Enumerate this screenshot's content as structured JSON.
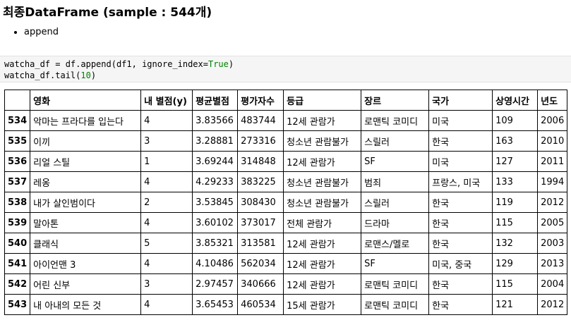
{
  "heading": "최종DataFrame (sample : 544개)",
  "bullets": [
    "append"
  ],
  "code": {
    "line1_a": "watcha_df = df.append(df1, ignore_index=",
    "line1_kw": "True",
    "line1_b": ")",
    "line2_a": "watcha_df.tail(",
    "line2_num": "10",
    "line2_b": ")"
  },
  "table": {
    "columns": [
      "",
      "영화",
      "내 별점(y)",
      "평균별점",
      "평가자수",
      "등급",
      "장르",
      "국가",
      "상영시간",
      "년도"
    ],
    "rows": [
      [
        "534",
        "악마는 프라다를 입는다",
        "4",
        "3.83566",
        "483744",
        "12세 관람가",
        "로맨틱 코미디",
        "미국",
        "109",
        "2006"
      ],
      [
        "535",
        "이끼",
        "3",
        "3.28881",
        "273316",
        "청소년 관람불가",
        "스릴러",
        "한국",
        "163",
        "2010"
      ],
      [
        "536",
        "리얼 스틸",
        "1",
        "3.69244",
        "314848",
        "12세 관람가",
        "SF",
        "미국",
        "127",
        "2011"
      ],
      [
        "537",
        "레옹",
        "4",
        "4.29233",
        "383225",
        "청소년 관람불가",
        "범죄",
        "프랑스, 미국",
        "133",
        "1994"
      ],
      [
        "538",
        "내가 살인범이다",
        "2",
        "3.53845",
        "308430",
        "청소년 관람불가",
        "스릴러",
        "한국",
        "119",
        "2012"
      ],
      [
        "539",
        "말아톤",
        "4",
        "3.60102",
        "373017",
        "전체 관람가",
        "드라마",
        "한국",
        "115",
        "2005"
      ],
      [
        "540",
        "클래식",
        "5",
        "3.85321",
        "313581",
        "12세 관람가",
        "로맨스/멜로",
        "한국",
        "132",
        "2003"
      ],
      [
        "541",
        "아이언맨 3",
        "4",
        "4.10486",
        "562034",
        "12세 관람가",
        "SF",
        "미국, 중국",
        "129",
        "2013"
      ],
      [
        "542",
        "어린 신부",
        "3",
        "2.97457",
        "340666",
        "12세 관람가",
        "로맨틱 코미디",
        "한국",
        "115",
        "2004"
      ],
      [
        "543",
        "내 아내의 모든 것",
        "4",
        "3.65453",
        "460534",
        "15세 관람가",
        "로맨틱 코미디",
        "한국",
        "121",
        "2012"
      ]
    ]
  }
}
